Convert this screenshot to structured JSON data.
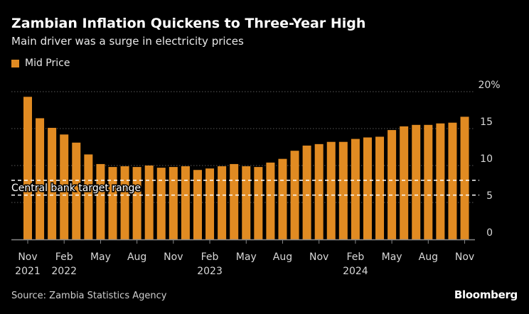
{
  "header": {
    "title": "Zambian Inflation Quickens to Three-Year High",
    "subtitle": "Main driver was a surge in electricity prices"
  },
  "footer": {
    "source": "Source: Zambia Statistics Agency",
    "brand": "Bloomberg"
  },
  "chart_data": {
    "type": "bar",
    "title": "Zambian Inflation Quickens to Three-Year High",
    "subtitle": "Main driver was a surge in electricity prices",
    "series": [
      {
        "name": "Mid Price",
        "color": "#e18b22",
        "values": [
          19.3,
          16.4,
          15.1,
          14.2,
          13.1,
          11.5,
          10.2,
          9.8,
          9.9,
          9.8,
          10.0,
          9.7,
          9.8,
          9.9,
          9.4,
          9.6,
          9.9,
          10.2,
          9.9,
          9.8,
          10.4,
          10.9,
          12.0,
          12.7,
          12.9,
          13.2,
          13.2,
          13.6,
          13.8,
          13.9,
          14.8,
          15.3,
          15.5,
          15.5,
          15.7,
          15.8,
          16.6
        ]
      }
    ],
    "categories": [
      "Nov 2021",
      "Dec 2021",
      "Jan 2022",
      "Feb 2022",
      "Mar 2022",
      "Apr 2022",
      "May 2022",
      "Jun 2022",
      "Jul 2022",
      "Aug 2022",
      "Sep 2022",
      "Oct 2022",
      "Nov 2022",
      "Dec 2022",
      "Jan 2023",
      "Feb 2023",
      "Mar 2023",
      "Apr 2023",
      "May 2023",
      "Jun 2023",
      "Jul 2023",
      "Aug 2023",
      "Sep 2023",
      "Oct 2023",
      "Nov 2023",
      "Dec 2023",
      "Jan 2024",
      "Feb 2024",
      "Mar 2024",
      "Apr 2024",
      "May 2024",
      "Jun 2024",
      "Jul 2024",
      "Aug 2024",
      "Sep 2024",
      "Oct 2024",
      "Nov 2024"
    ],
    "x_ticks": [
      {
        "index": 0,
        "label": "Nov",
        "year": "2021"
      },
      {
        "index": 3,
        "label": "Feb",
        "year": "2022"
      },
      {
        "index": 6,
        "label": "May",
        "year": ""
      },
      {
        "index": 9,
        "label": "Aug",
        "year": ""
      },
      {
        "index": 12,
        "label": "Nov",
        "year": ""
      },
      {
        "index": 15,
        "label": "Feb",
        "year": "2023"
      },
      {
        "index": 18,
        "label": "May",
        "year": ""
      },
      {
        "index": 21,
        "label": "Aug",
        "year": ""
      },
      {
        "index": 24,
        "label": "Nov",
        "year": ""
      },
      {
        "index": 27,
        "label": "Feb",
        "year": "2024"
      },
      {
        "index": 30,
        "label": "May",
        "year": ""
      },
      {
        "index": 33,
        "label": "Aug",
        "year": ""
      },
      {
        "index": 36,
        "label": "Nov",
        "year": ""
      }
    ],
    "y_ticks": [
      {
        "value": 0,
        "label": "0"
      },
      {
        "value": 5,
        "label": "5"
      },
      {
        "value": 10,
        "label": "10"
      },
      {
        "value": 15,
        "label": "15"
      },
      {
        "value": 20,
        "label": "20%"
      }
    ],
    "ylim": [
      0,
      20
    ],
    "y_axis_position": "right",
    "grid": true,
    "legend_position": "top-left",
    "annotation": {
      "label": "Central bank target range",
      "low": 6,
      "high": 8
    }
  }
}
